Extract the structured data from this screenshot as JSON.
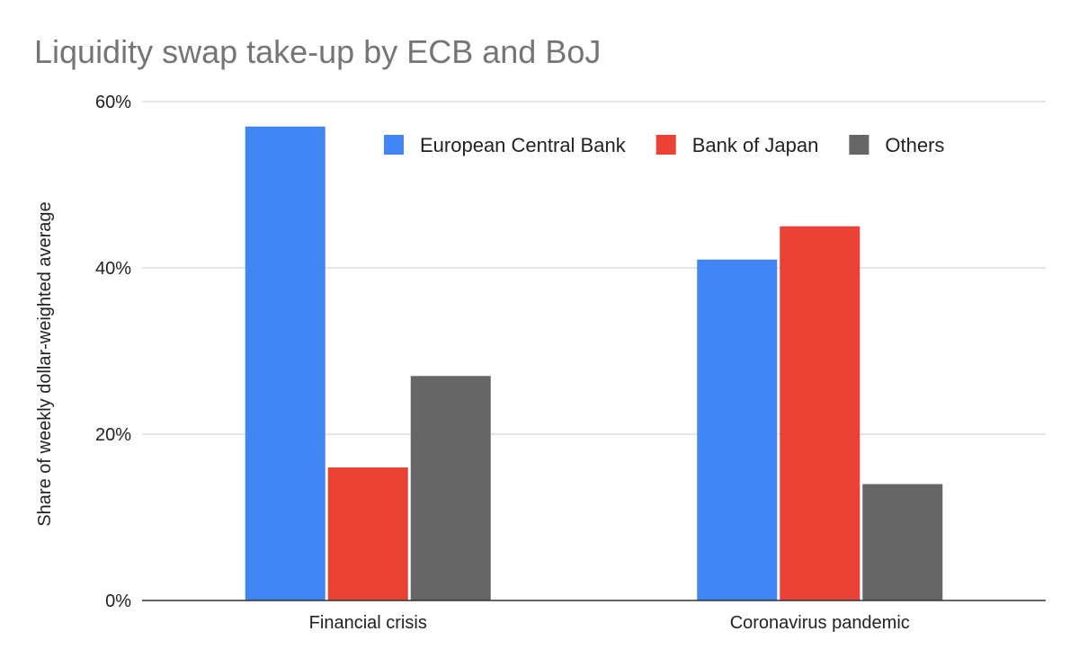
{
  "chart_data": {
    "type": "bar",
    "title": "Liquidity swap take-up by ECB and BoJ",
    "xlabel": "",
    "ylabel": "Share of weekly dollar-weighted average",
    "categories": [
      "Financial crisis",
      "Coronavirus pandemic"
    ],
    "series": [
      {
        "name": "European Central Bank",
        "color": "#4285f4",
        "values": [
          57,
          41
        ]
      },
      {
        "name": "Bank of Japan",
        "color": "#ea4335",
        "values": [
          16,
          45
        ]
      },
      {
        "name": "Others",
        "color": "#666666",
        "values": [
          27,
          14
        ]
      }
    ],
    "ylim": [
      0,
      60
    ],
    "yticks": [
      0,
      20,
      40,
      60
    ],
    "ytick_labels": [
      "0%",
      "20%",
      "40%",
      "60%"
    ],
    "grid": true,
    "legend_position": "top-right"
  }
}
